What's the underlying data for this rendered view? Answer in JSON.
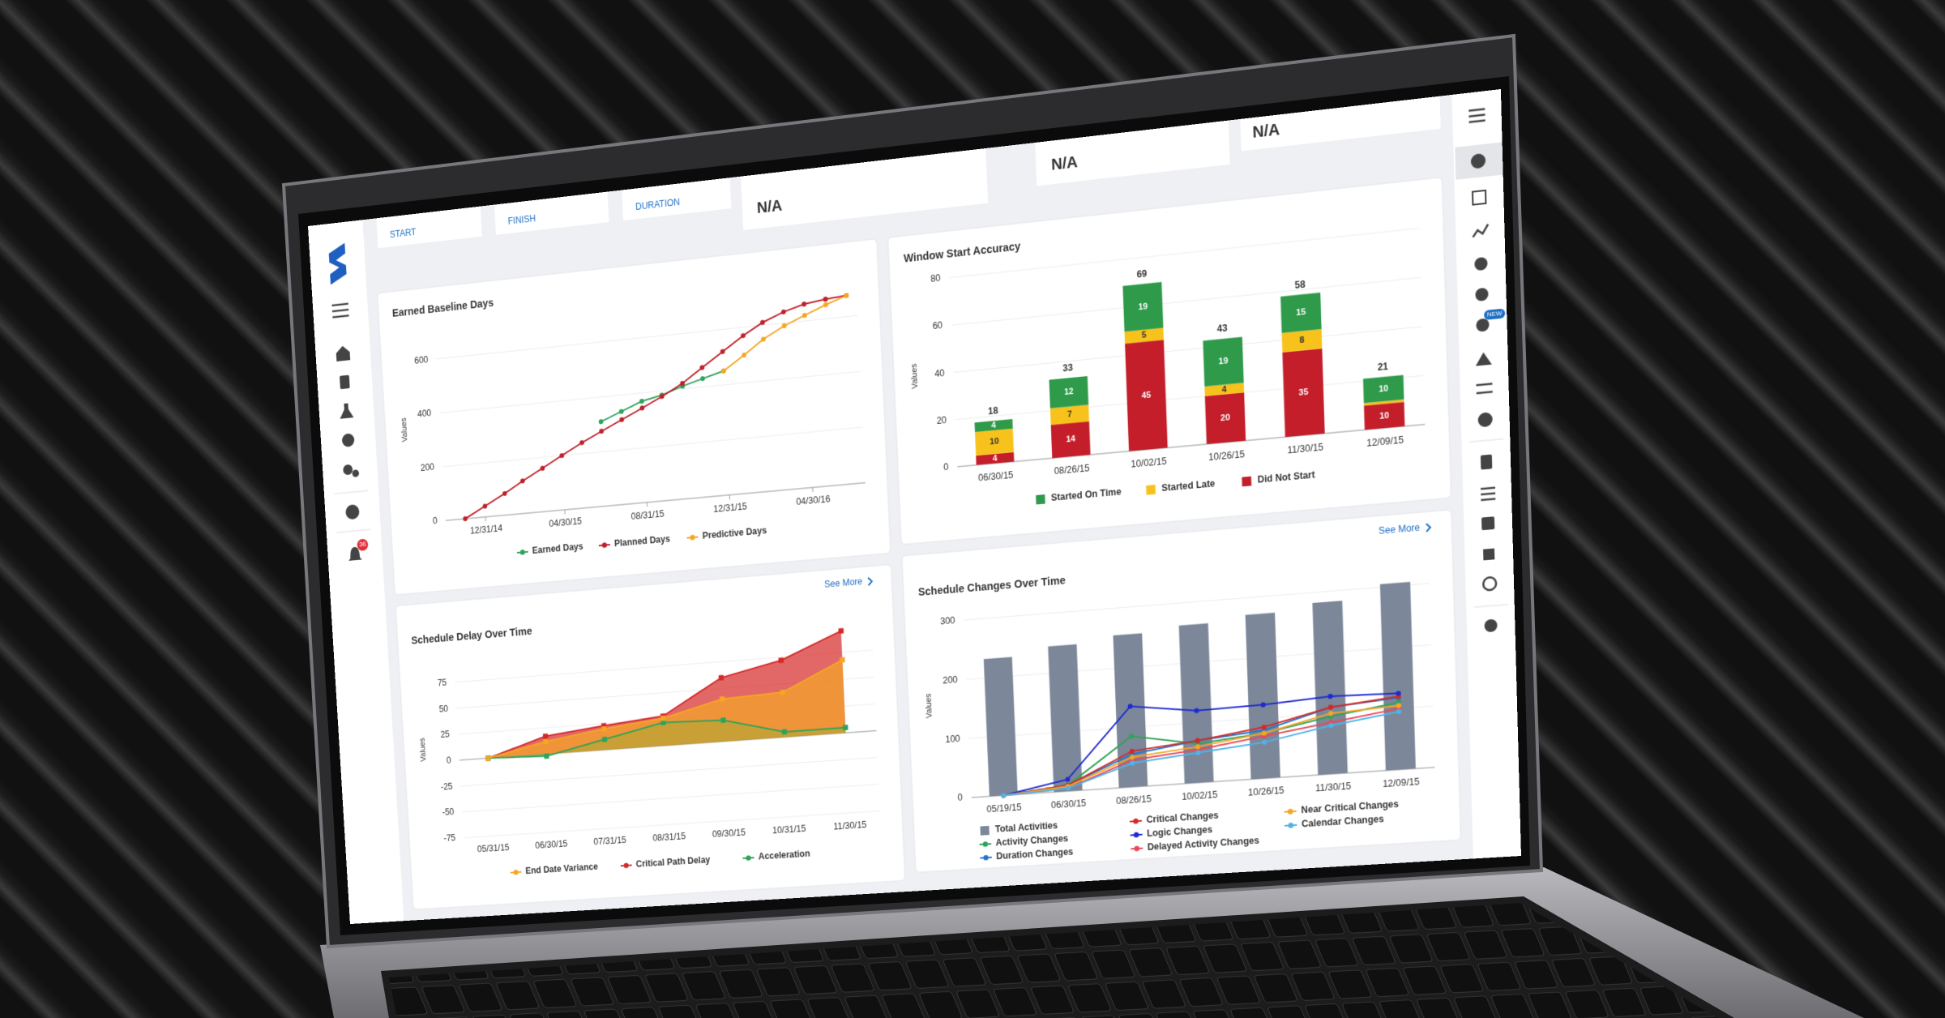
{
  "ui": {
    "cards": [
      "START",
      "FINISH",
      "DURATION"
    ],
    "na": [
      "N/A",
      "N/A",
      "N/A"
    ],
    "see_more": [
      "See More",
      "See More"
    ],
    "badge": "36",
    "new_badge": "NEW"
  },
  "chart_data": [
    {
      "type": "line",
      "title": "Earned Baseline Days",
      "y_label": "Values",
      "x": [
        "11/30/14",
        "12/31/14",
        "01/31/15",
        "02/28/15",
        "03/31/15",
        "04/30/15",
        "05/31/15",
        "06/30/15",
        "07/31/15",
        "08/31/15",
        "09/30/15",
        "10/31/15",
        "11/30/15",
        "12/31/15",
        "01/31/16",
        "02/29/16",
        "03/31/16",
        "04/30/16",
        "05/31/16",
        "06/30/16"
      ],
      "xlim": [
        "10/31/14",
        "07/15/16"
      ],
      "xticks": [
        "12/31/14",
        "04/30/15",
        "08/31/15",
        "12/31/15",
        "04/30/16"
      ],
      "ylim": [
        0,
        700
      ],
      "yticks": [
        0,
        200,
        400,
        600
      ],
      "grid": true,
      "series": [
        {
          "name": "Earned Days",
          "color": "#2ea35a",
          "values": [
            null,
            null,
            null,
            null,
            null,
            null,
            null,
            310,
            340,
            370,
            385,
            410,
            430,
            450,
            null,
            null,
            null,
            null,
            null,
            null
          ]
        },
        {
          "name": "Planned Days",
          "color": "#c0202a",
          "values": [
            0,
            40,
            80,
            120,
            160,
            200,
            240,
            275,
            310,
            345,
            380,
            420,
            470,
            520,
            570,
            610,
            640,
            660,
            670,
            675
          ]
        },
        {
          "name": "Predictive Days",
          "color": "#f5a623",
          "values": [
            null,
            null,
            null,
            null,
            null,
            null,
            null,
            null,
            null,
            null,
            null,
            null,
            null,
            450,
            500,
            550,
            590,
            620,
            650,
            675
          ]
        }
      ]
    },
    {
      "type": "stacked_bar",
      "title": "Window Start Accuracy",
      "y_label": "Values",
      "categories": [
        "06/30/15",
        "08/26/15",
        "10/02/15",
        "10/26/15",
        "11/30/15",
        "12/09/15"
      ],
      "ylim": [
        0,
        80
      ],
      "yticks": [
        0,
        20,
        40,
        60,
        80
      ],
      "grid": true,
      "totals": [
        18,
        33,
        69,
        43,
        58,
        21
      ],
      "series": [
        {
          "name": "Started On Time",
          "color": "#2e9a4a",
          "values": [
            4,
            12,
            19,
            19,
            15,
            10
          ]
        },
        {
          "name": "Started Late",
          "color": "#f7c21b",
          "values": [
            10,
            7,
            5,
            4,
            8,
            1
          ]
        },
        {
          "name": "Did Not Start",
          "color": "#c41e2a",
          "values": [
            4,
            14,
            45,
            20,
            35,
            10
          ]
        }
      ]
    },
    {
      "type": "area",
      "title": "Schedule Delay Over Time",
      "y_label": "Values",
      "categories": [
        "05/31/15",
        "06/30/15",
        "07/31/15",
        "08/31/15",
        "09/30/15",
        "10/31/15",
        "11/30/15"
      ],
      "ylim": [
        -75,
        100
      ],
      "yticks": [
        -75,
        -50,
        -25,
        0,
        25,
        50,
        75
      ],
      "grid": true,
      "series": [
        {
          "name": "End Date Variance",
          "color": "#f5a623",
          "values": [
            0,
            12,
            20,
            26,
            40,
            42,
            68
          ]
        },
        {
          "name": "Critical Path Delay",
          "color": "#d62828",
          "values": [
            0,
            17,
            23,
            28,
            60,
            72,
            95
          ]
        },
        {
          "name": "Acceleration",
          "color": "#2ea35a",
          "values": [
            0,
            -2,
            10,
            22,
            20,
            5,
            5
          ]
        }
      ]
    },
    {
      "type": "bar_line",
      "title": "Schedule Changes Over Time",
      "y_label": "Values",
      "categories": [
        "05/19/15",
        "06/30/15",
        "08/26/15",
        "10/02/15",
        "10/26/15",
        "11/30/15",
        "12/09/15"
      ],
      "ylim": [
        0,
        320
      ],
      "yticks": [
        0,
        100,
        200,
        300
      ],
      "grid": true,
      "series": [
        {
          "name": "Total Activities",
          "type": "bar",
          "color": "#7c8799",
          "values": [
            232,
            245,
            255,
            263,
            272,
            283,
            305
          ]
        },
        {
          "name": "Activity Changes",
          "color": "#2ea35a",
          "values": [
            0,
            10,
            85,
            65,
            75,
            95,
            110
          ]
        },
        {
          "name": "Duration Changes",
          "color": "#2476c9",
          "values": [
            0,
            10,
            55,
            70,
            80,
            110,
            118
          ]
        },
        {
          "name": "Critical Changes",
          "color": "#d62828",
          "values": [
            0,
            10,
            60,
            70,
            85,
            110,
            120
          ]
        },
        {
          "name": "Logic Changes",
          "color": "#1f2bd1",
          "values": [
            0,
            20,
            135,
            120,
            122,
            128,
            125
          ]
        },
        {
          "name": "Delayed Activity Changes",
          "color": "#e8495c",
          "values": [
            0,
            5,
            45,
            55,
            70,
            85,
            100
          ]
        },
        {
          "name": "Near Critical Changes",
          "color": "#f5a623",
          "values": [
            0,
            8,
            50,
            60,
            75,
            100,
            105
          ]
        },
        {
          "name": "Calendar Changes",
          "color": "#4fb3e8",
          "values": [
            0,
            5,
            40,
            50,
            60,
            80,
            95
          ]
        }
      ]
    }
  ]
}
